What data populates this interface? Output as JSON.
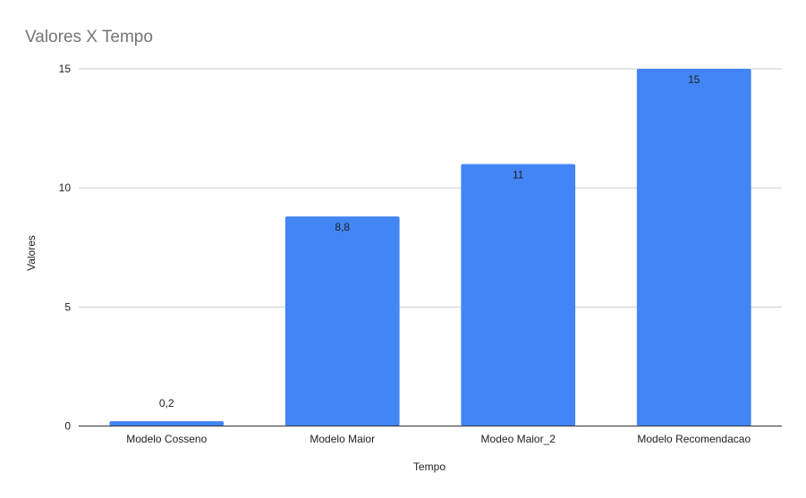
{
  "chart_data": {
    "type": "bar",
    "title": "Valores X Tempo",
    "xlabel": "Tempo",
    "ylabel": "Valores",
    "categories": [
      "Modelo Cosseno",
      "Modelo Maior",
      "Modeo Maior_2",
      "Modelo Recomendacao"
    ],
    "values": [
      0.2,
      8.8,
      11,
      15
    ],
    "data_labels": [
      "0,2",
      "8,8",
      "11",
      "15"
    ],
    "ylim": [
      0,
      15
    ],
    "yticks": [
      0,
      5,
      10,
      15
    ],
    "ytick_labels": [
      "0",
      "5",
      "10",
      "15"
    ],
    "grid": true,
    "legend": "none",
    "bar_color": "#4285f4"
  }
}
